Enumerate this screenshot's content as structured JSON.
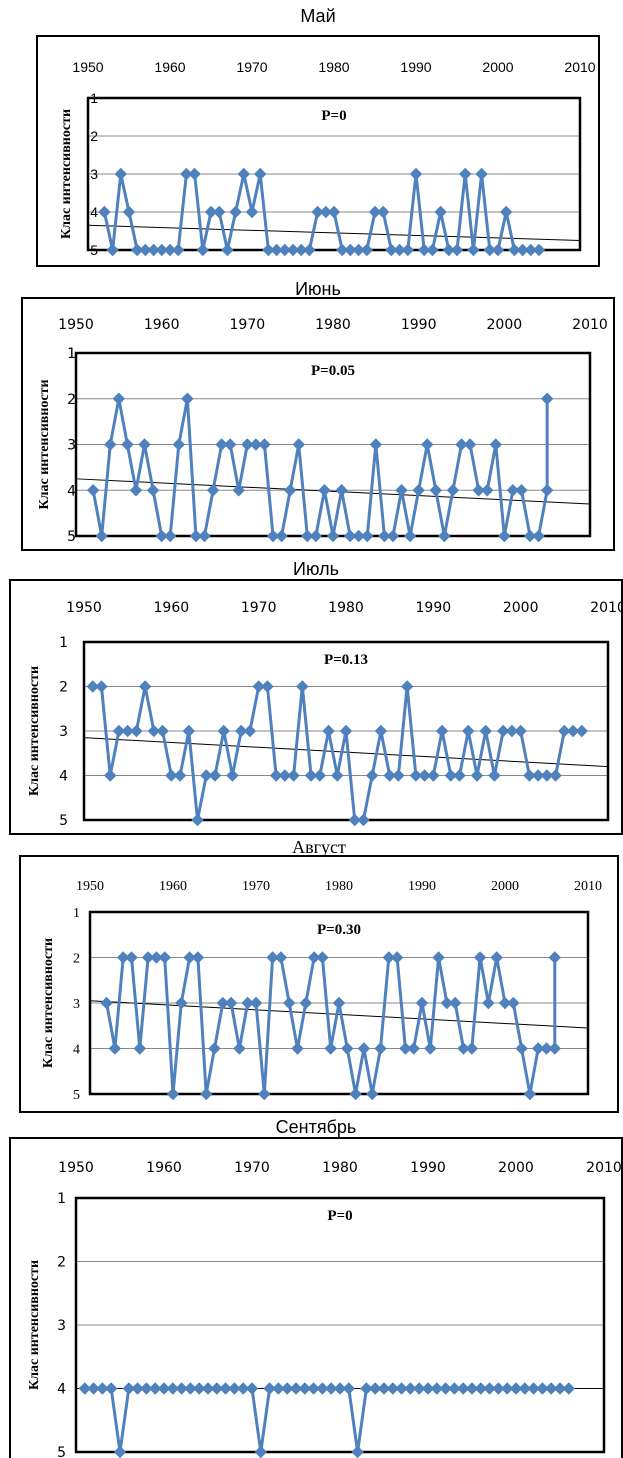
{
  "chart_data": [
    {
      "type": "line",
      "title": "Май",
      "ylabel": "Клас интенсивности",
      "annotation": "P=0",
      "xlim": [
        1950,
        2010
      ],
      "ylim": [
        1,
        5
      ],
      "y_reversed": true,
      "x_ticks": [
        "1950",
        "1960",
        "1970",
        "1980",
        "1990",
        "2000",
        "2010"
      ],
      "y_ticks": [
        "1",
        "2",
        "3",
        "4",
        "5"
      ],
      "grid": true,
      "series_color": "#4F81BD",
      "x": [
        1952,
        1953,
        1954,
        1955,
        1956,
        1957,
        1958,
        1959,
        1960,
        1961,
        1962,
        1963,
        1964,
        1965,
        1966,
        1967,
        1968,
        1969,
        1970,
        1971,
        1972,
        1973,
        1974,
        1975,
        1976,
        1977,
        1978,
        1979,
        1980,
        1981,
        1982,
        1983,
        1984,
        1985,
        1986,
        1987,
        1988,
        1989,
        1990,
        1991,
        1992,
        1993,
        1994,
        1995,
        1996,
        1997,
        1998,
        1999,
        2000,
        2001,
        2002,
        2003,
        2004,
        2005
      ],
      "values": [
        4,
        5,
        3,
        4,
        5,
        5,
        5,
        5,
        5,
        5,
        3,
        3,
        5,
        4,
        4,
        5,
        4,
        3,
        4,
        3,
        5,
        5,
        5,
        5,
        5,
        5,
        4,
        4,
        4,
        5,
        5,
        5,
        5,
        4,
        4,
        5,
        5,
        5,
        3,
        5,
        5,
        4,
        5,
        5,
        3,
        5,
        3,
        5,
        5,
        4,
        5,
        5,
        5,
        5
      ],
      "trend": [
        4.35,
        4.75
      ]
    },
    {
      "type": "line",
      "title": "Июнь",
      "ylabel": "Клас интенсивности",
      "annotation": "P=0.05",
      "xlim": [
        1950,
        2010
      ],
      "ylim": [
        1,
        5
      ],
      "y_reversed": true,
      "x_ticks": [
        "1950",
        "1960",
        "1970",
        "1980",
        "1990",
        "2000",
        "2010"
      ],
      "y_ticks": [
        "1",
        "2",
        "3",
        "4",
        "5"
      ],
      "grid": true,
      "series_color": "#4F81BD",
      "x": [
        1952,
        1953,
        1954,
        1955,
        1956,
        1957,
        1958,
        1959,
        1960,
        1961,
        1962,
        1963,
        1964,
        1965,
        1966,
        1967,
        1968,
        1969,
        1970,
        1971,
        1972,
        1973,
        1974,
        1975,
        1976,
        1977,
        1978,
        1979,
        1980,
        1981,
        1982,
        1983,
        1984,
        1985,
        1986,
        1987,
        1988,
        1989,
        1990,
        1991,
        1992,
        1993,
        1994,
        1995,
        1996,
        1997,
        1998,
        1999,
        2000,
        2001,
        2002,
        2003,
        2004,
        2005
      ],
      "values": [
        4,
        5,
        3,
        2,
        3,
        4,
        3,
        4,
        5,
        5,
        3,
        2,
        5,
        5,
        4,
        3,
        3,
        4,
        3,
        3,
        3,
        5,
        5,
        4,
        3,
        5,
        5,
        4,
        5,
        4,
        5,
        5,
        5,
        3,
        5,
        5,
        4,
        5,
        4,
        3,
        4,
        5,
        4,
        3,
        3,
        4,
        4,
        3,
        5,
        4,
        4,
        5,
        5,
        4
      ],
      "extra_last_point": {
        "x": 2005,
        "value": 2
      },
      "trend": [
        3.75,
        4.3
      ]
    },
    {
      "type": "line",
      "title": "Июль",
      "ylabel": "Клас интенсивности",
      "annotation": "P=0.13",
      "xlim": [
        1950,
        2010
      ],
      "ylim": [
        1,
        5
      ],
      "y_reversed": true,
      "x_ticks": [
        "1950",
        "1960",
        "1970",
        "1980",
        "1990",
        "2000",
        "2010"
      ],
      "y_ticks": [
        "1",
        "2",
        "3",
        "4",
        "5"
      ],
      "grid": true,
      "series_color": "#4F81BD",
      "x": [
        1951,
        1952,
        1953,
        1954,
        1955,
        1956,
        1957,
        1958,
        1959,
        1960,
        1961,
        1962,
        1963,
        1964,
        1965,
        1966,
        1967,
        1968,
        1969,
        1970,
        1971,
        1972,
        1973,
        1974,
        1975,
        1976,
        1977,
        1978,
        1979,
        1980,
        1981,
        1982,
        1983,
        1984,
        1985,
        1986,
        1987,
        1988,
        1989,
        1990,
        1991,
        1992,
        1993,
        1994,
        1995,
        1996,
        1997,
        1998,
        1999,
        2000,
        2001,
        2002,
        2003,
        2004,
        2005,
        2006,
        2007
      ],
      "values": [
        2,
        2,
        4,
        3,
        3,
        3,
        2,
        3,
        3,
        4,
        4,
        3,
        5,
        4,
        4,
        3,
        4,
        3,
        3,
        2,
        2,
        4,
        4,
        4,
        2,
        4,
        4,
        3,
        4,
        3,
        5,
        5,
        4,
        3,
        4,
        4,
        2,
        4,
        4,
        4,
        3,
        4,
        4,
        3,
        4,
        3,
        4,
        3,
        3,
        3,
        4,
        4,
        4,
        4,
        3,
        3,
        3
      ],
      "trend": [
        3.15,
        3.8
      ]
    },
    {
      "type": "line",
      "title": "Август",
      "ylabel": "Клас интенсивности",
      "annotation": "P=0.30",
      "xlim": [
        1950,
        2010
      ],
      "ylim": [
        1,
        5
      ],
      "y_reversed": true,
      "x_ticks": [
        "1950",
        "1960",
        "1970",
        "1980",
        "1990",
        "2000",
        "2010"
      ],
      "y_ticks": [
        "1",
        "2",
        "3",
        "4",
        "5"
      ],
      "grid": true,
      "series_color": "#4F81BD",
      "x": [
        1952,
        1953,
        1954,
        1955,
        1956,
        1957,
        1958,
        1959,
        1960,
        1961,
        1962,
        1963,
        1964,
        1965,
        1966,
        1967,
        1968,
        1969,
        1970,
        1971,
        1972,
        1973,
        1974,
        1975,
        1976,
        1977,
        1978,
        1979,
        1980,
        1981,
        1982,
        1983,
        1984,
        1985,
        1986,
        1987,
        1988,
        1989,
        1990,
        1991,
        1992,
        1993,
        1994,
        1995,
        1996,
        1997,
        1998,
        1999,
        2000,
        2001,
        2002,
        2003,
        2004,
        2005,
        2006
      ],
      "values": [
        3,
        4,
        2,
        2,
        4,
        2,
        2,
        2,
        5,
        3,
        2,
        2,
        5,
        4,
        3,
        3,
        4,
        3,
        3,
        5,
        2,
        2,
        3,
        4,
        3,
        2,
        2,
        4,
        3,
        4,
        5,
        4,
        5,
        4,
        2,
        2,
        4,
        4,
        3,
        4,
        2,
        3,
        3,
        4,
        4,
        2,
        3,
        2,
        3,
        3,
        4,
        5,
        4,
        4,
        4
      ],
      "extra_last_point": {
        "x": 2006,
        "value": 2
      },
      "trend": [
        2.95,
        3.55
      ]
    },
    {
      "type": "line",
      "title": "Сентябрь",
      "ylabel": "Клас интенсивности",
      "annotation": "P=0",
      "xlim": [
        1950,
        2010
      ],
      "ylim": [
        1,
        5
      ],
      "y_reversed": true,
      "x_ticks": [
        "1950",
        "1960",
        "1970",
        "1980",
        "1990",
        "2000",
        "2010"
      ],
      "y_ticks": [
        "1",
        "2",
        "3",
        "4",
        "5"
      ],
      "grid": true,
      "series_color": "#4F81BD",
      "x": [
        1951,
        1952,
        1953,
        1954,
        1955,
        1956,
        1957,
        1958,
        1959,
        1960,
        1961,
        1962,
        1963,
        1964,
        1965,
        1966,
        1967,
        1968,
        1969,
        1970,
        1971,
        1972,
        1973,
        1974,
        1975,
        1976,
        1977,
        1978,
        1979,
        1980,
        1981,
        1982,
        1983,
        1984,
        1985,
        1986,
        1987,
        1988,
        1989,
        1990,
        1991,
        1992,
        1993,
        1994,
        1995,
        1996,
        1997,
        1998,
        1999,
        2000,
        2001,
        2002,
        2003,
        2004,
        2005,
        2006
      ],
      "values": [
        4,
        4,
        4,
        4,
        5,
        4,
        4,
        4,
        4,
        4,
        4,
        4,
        4,
        4,
        4,
        4,
        4,
        4,
        4,
        4,
        5,
        4,
        4,
        4,
        4,
        4,
        4,
        4,
        4,
        4,
        4,
        5,
        4,
        4,
        4,
        4,
        4,
        4,
        4,
        4,
        4,
        4,
        4,
        4,
        4,
        4,
        4,
        4,
        4,
        4,
        4,
        4,
        4,
        4,
        4,
        4
      ],
      "trend": [
        4.0,
        4.0
      ]
    }
  ]
}
